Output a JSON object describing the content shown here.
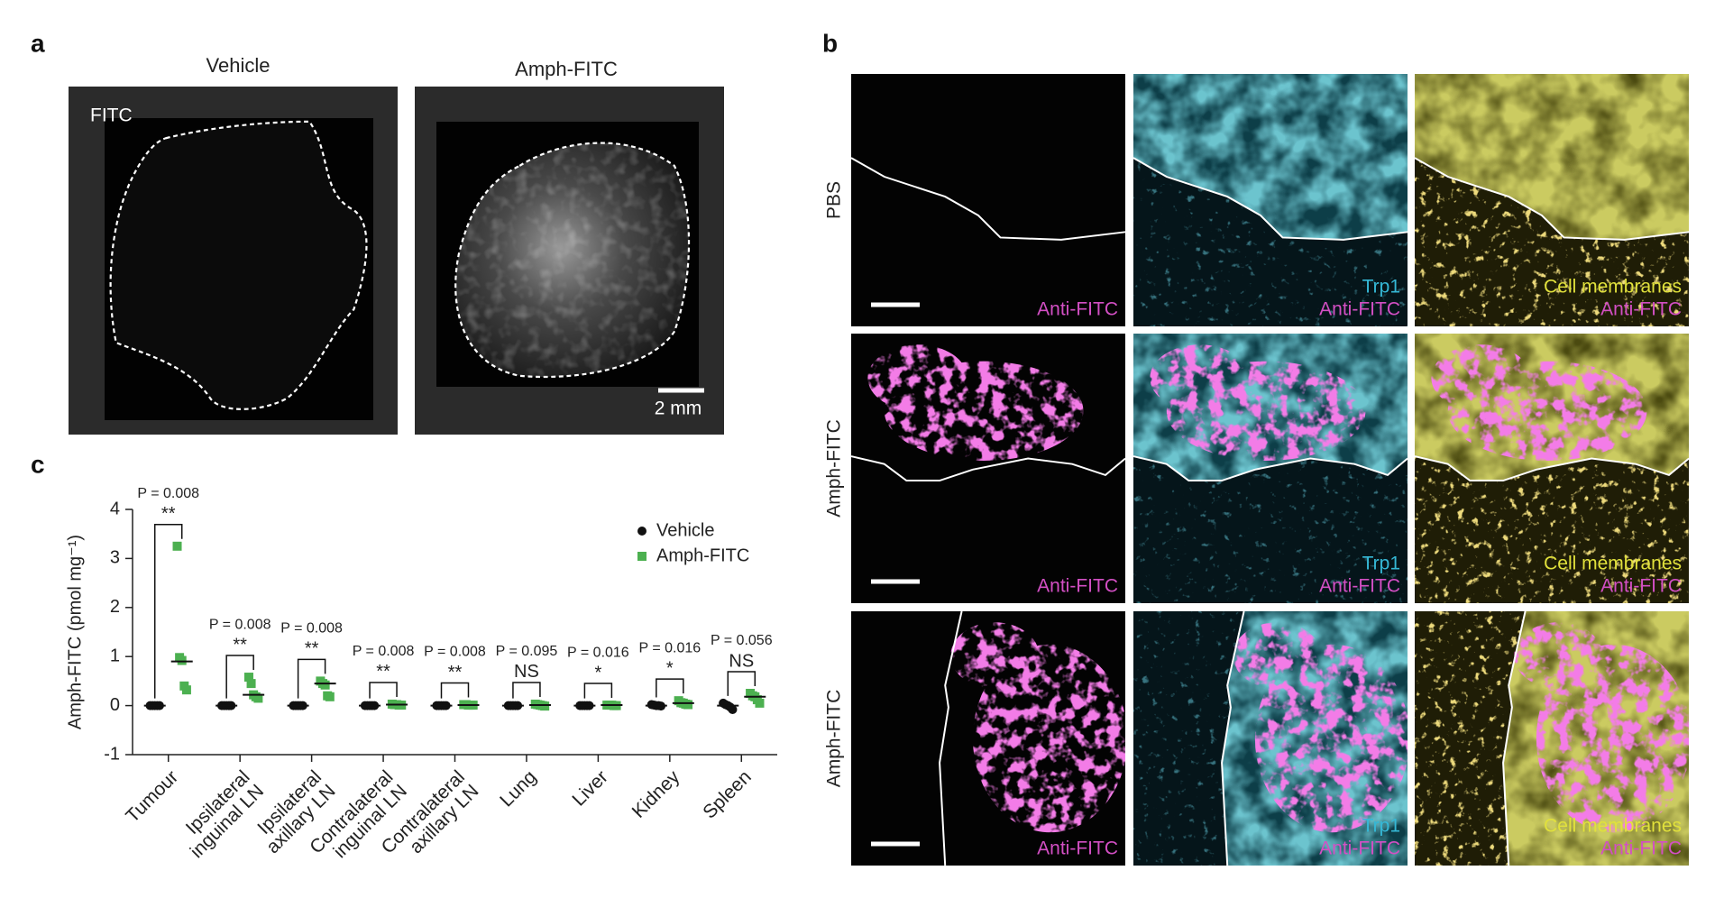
{
  "panel_a": {
    "label": "a",
    "columns": [
      "Vehicle",
      "Amph-FITC"
    ],
    "channel": "FITC",
    "scale_bar": "2 mm"
  },
  "panel_b": {
    "label": "b",
    "rows": [
      "PBS",
      "Amph-FITC",
      "Amph-FITC"
    ],
    "anti_fitc": "Anti-FITC",
    "trp1": "Trp1",
    "membranes": "Cell membranes"
  },
  "panel_c": {
    "label": "c"
  },
  "chart_data": {
    "type": "strip",
    "ylabel": "Amph-FITC (pmol mg⁻¹)",
    "categories": [
      [
        "Tumour"
      ],
      [
        "Ipsilateral",
        "inguinal LN"
      ],
      [
        "Ipsilateral",
        "axillary LN"
      ],
      [
        "Contralateral",
        "inguinal LN"
      ],
      [
        "Contralateral",
        "axillary LN"
      ],
      [
        "Lung"
      ],
      [
        "Liver"
      ],
      [
        "Kidney"
      ],
      [
        "Spleen"
      ]
    ],
    "series": [
      {
        "name": "Vehicle",
        "color": "#111111",
        "marker": "circle",
        "values": [
          [
            0,
            0,
            0,
            0,
            0
          ],
          [
            0,
            0,
            0,
            0,
            0
          ],
          [
            0,
            0,
            0,
            0,
            0
          ],
          [
            0,
            0,
            0,
            0,
            0
          ],
          [
            0,
            0,
            0,
            0,
            0
          ],
          [
            0,
            0,
            0,
            0,
            0
          ],
          [
            0,
            0,
            0,
            0,
            0
          ],
          [
            0.02,
            0.01,
            0,
            0,
            -0.01
          ],
          [
            0.05,
            0.02,
            0,
            -0.03,
            -0.08
          ]
        ],
        "centers": [
          0,
          0,
          0,
          0,
          0,
          0,
          0,
          0,
          0
        ]
      },
      {
        "name": "Amph-FITC",
        "color": "#4cb050",
        "marker": "square",
        "values": [
          [
            3.25,
            0.98,
            0.92,
            0.4,
            0.32
          ],
          [
            0.58,
            0.45,
            0.22,
            0.18,
            0.15
          ],
          [
            0.5,
            0.45,
            0.42,
            0.2,
            0.18
          ],
          [
            0.03,
            0.02,
            0.02,
            0.01,
            0.01
          ],
          [
            0.02,
            0.02,
            0.01,
            0.01,
            0.01
          ],
          [
            0.03,
            0.02,
            0.01,
            0,
            -0.01
          ],
          [
            0.01,
            0.01,
            0.01,
            0,
            0
          ],
          [
            0.1,
            0.06,
            0.05,
            0.03,
            0.02
          ],
          [
            0.25,
            0.2,
            0.18,
            0.12,
            0.05
          ]
        ],
        "centers": [
          0.9,
          0.22,
          0.45,
          0.02,
          0.01,
          0.01,
          0.01,
          0.05,
          0.18
        ]
      }
    ],
    "comparisons": [
      {
        "p": "P = 0.008",
        "significance": "**"
      },
      {
        "p": "P = 0.008",
        "significance": "**"
      },
      {
        "p": "P = 0.008",
        "significance": "**"
      },
      {
        "p": "P = 0.008",
        "significance": "**"
      },
      {
        "p": "P = 0.008",
        "significance": "**"
      },
      {
        "p": "P = 0.095",
        "significance": "NS"
      },
      {
        "p": "P = 0.016",
        "significance": "*"
      },
      {
        "p": "P = 0.016",
        "significance": "*"
      },
      {
        "p": "P = 0.056",
        "significance": "NS"
      }
    ],
    "ylim": [
      -1,
      4
    ],
    "yticks": [
      -1,
      0,
      1,
      2,
      3,
      4
    ],
    "legend": "upper right"
  }
}
